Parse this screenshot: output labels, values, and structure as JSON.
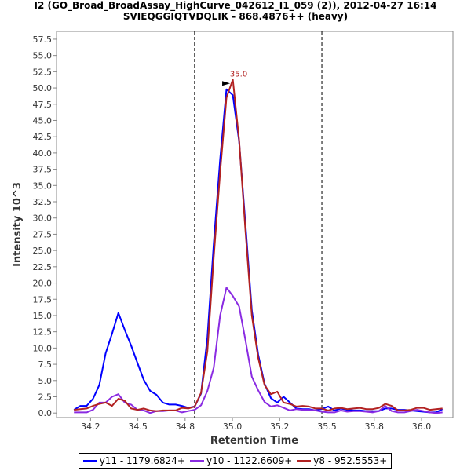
{
  "chart_data": {
    "type": "line",
    "title": "I2 (GO_Broad_BroadAssay_HighCurve_042612_I1_059 (2)), 2012-04-27 16:14",
    "subtitle": "SVIEQGGIQTVDQLIK - 868.4876++ (heavy)",
    "xlabel": "Retention Time",
    "ylabel": "Intensity 10^3",
    "xlim": [
      34.07,
      36.166
    ],
    "ylim": [
      -0.7,
      58.7
    ],
    "x_ticks": [
      34.25,
      34.5,
      34.75,
      35.0,
      35.25,
      35.5,
      35.75,
      36.0
    ],
    "x_tick_labels": [
      "34.2",
      "34.5",
      "34.8",
      "35.0",
      "35.2",
      "35.5",
      "35.8",
      "36.0"
    ],
    "y_ticks": [
      0,
      2.5,
      5,
      7.5,
      10,
      12.5,
      15,
      17.5,
      20,
      22.5,
      25,
      27.5,
      30,
      32.5,
      35,
      37.5,
      40,
      42.5,
      45,
      47.5,
      50,
      52.5,
      55,
      57.5
    ],
    "y_tick_labels": [
      "0.0",
      "2.5",
      "5.0",
      "7.5",
      "10.0",
      "12.5",
      "15.0",
      "17.5",
      "20.0",
      "22.5",
      "25.0",
      "27.5",
      "30.0",
      "32.5",
      "35.0",
      "37.5",
      "40.0",
      "42.5",
      "45.0",
      "47.5",
      "50.0",
      "52.5",
      "55.0",
      "57.5"
    ],
    "grid": false,
    "legend_placement": "bottom",
    "x_start": 34.162,
    "x_step": 0.0336,
    "boundaries": [
      34.8,
      35.473
    ],
    "peak_annotation": {
      "label": "35.0",
      "x": 35.0,
      "y": 51.3,
      "color": "#b22222"
    },
    "series": [
      {
        "name": "y11 - 1179.6824+",
        "color": "#0000ff",
        "values": [
          0.5,
          1.1,
          1.1,
          2.2,
          4.3,
          9.2,
          12.2,
          15.4,
          12.8,
          10.4,
          7.7,
          5.1,
          3.4,
          2.8,
          1.6,
          1.3,
          1.3,
          1.1,
          0.8,
          1.0,
          3.0,
          11.6,
          26.1,
          39.0,
          49.8,
          48.9,
          41.8,
          29,
          15.8,
          9,
          4.5,
          2.3,
          1.6,
          2.5,
          1.6,
          0.7,
          0.6,
          0.6,
          0.4,
          0.6,
          1.0,
          0.4,
          0.7,
          0.5,
          0.4,
          0.4,
          0.3,
          0.3,
          0.3,
          0.7,
          0.7,
          0.5,
          0.5,
          0.4,
          0.3,
          0.2,
          0.1,
          0.1,
          0.6
        ]
      },
      {
        "name": "y10 - 1122.6609+",
        "color": "#8a2be2",
        "values": [
          0.1,
          0.1,
          0.1,
          0.5,
          1.6,
          1.6,
          2.5,
          2.9,
          1.6,
          1.3,
          0.5,
          0.4,
          0.0,
          0.3,
          0.3,
          0.4,
          0.4,
          0.1,
          0.3,
          0.5,
          1.2,
          3.4,
          7.0,
          15.0,
          19.3,
          18.0,
          16.4,
          11.2,
          5.6,
          3.5,
          1.7,
          1.0,
          1.2,
          0.8,
          0.4,
          0.6,
          0.5,
          0.5,
          0.4,
          0.2,
          0.1,
          0.1,
          0.4,
          0.2,
          0.3,
          0.3,
          0.2,
          0.1,
          0.3,
          1.1,
          0.3,
          0.1,
          0.1,
          0.3,
          0.5,
          0.3,
          0.1,
          0.0,
          0.1
        ]
      },
      {
        "name": "y8 - 952.5553+",
        "color": "#b22222",
        "values": [
          0.5,
          0.6,
          0.7,
          1.1,
          1.4,
          1.6,
          1.1,
          2.2,
          1.9,
          0.7,
          0.5,
          0.7,
          0.4,
          0.3,
          0.4,
          0.4,
          0.4,
          0.8,
          0.7,
          1.0,
          3.1,
          9.5,
          24,
          37,
          48.5,
          51.3,
          42,
          28,
          15,
          8.5,
          4.3,
          2.9,
          3.3,
          1.6,
          1.4,
          1.0,
          1.1,
          1.0,
          0.7,
          0.7,
          0.4,
          0.7,
          0.8,
          0.6,
          0.7,
          0.8,
          0.6,
          0.6,
          0.8,
          1.4,
          1.1,
          0.4,
          0.4,
          0.5,
          0.8,
          0.8,
          0.5,
          0.6,
          0.7
        ]
      }
    ]
  }
}
